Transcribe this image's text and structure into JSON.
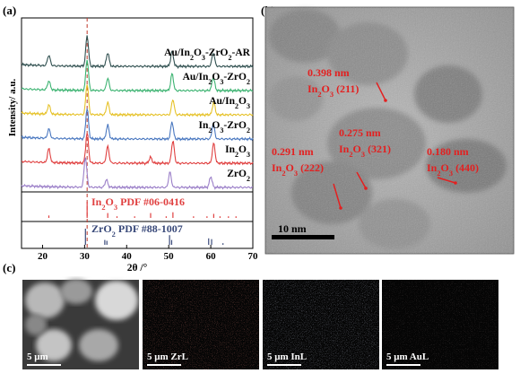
{
  "panels": {
    "a": "(a)",
    "b": "(b)",
    "c": "(c)"
  },
  "chart_data": {
    "type": "line",
    "xlabel": "2θ /°",
    "ylabel": "Intensity/ a.u.",
    "xlim": [
      15,
      70
    ],
    "xticks": [
      20,
      30,
      40,
      50,
      60,
      70
    ],
    "dashed_line_x": 30.6,
    "series": [
      {
        "name": "Au/In2O3-ZrO2-AR",
        "label_main": "Au/In",
        "sub1": "2",
        "mid1": "O",
        "sub2": "3",
        "tail": "-ZrO",
        "sub3": "2",
        "tail2": "-AR",
        "color": "#2f4f4f",
        "peaks": [
          [
            21.5,
            0.35
          ],
          [
            30.6,
            1.0
          ],
          [
            35.5,
            0.45
          ],
          [
            50.8,
            0.5
          ],
          [
            60.6,
            0.45
          ]
        ]
      },
      {
        "name": "Au/In2O3-ZrO2",
        "label_main": "Au/In",
        "sub1": "2",
        "mid1": "O",
        "sub2": "3",
        "tail": "-ZrO",
        "sub3": "2",
        "tail2": "",
        "color": "#3cb371",
        "peaks": [
          [
            21.5,
            0.3
          ],
          [
            30.6,
            1.0
          ],
          [
            35.5,
            0.4
          ],
          [
            50.8,
            0.55
          ],
          [
            60.6,
            0.45
          ]
        ]
      },
      {
        "name": "Au/In2O3",
        "label_main": "Au/In",
        "sub1": "2",
        "mid1": "O",
        "sub2": "3",
        "tail": "",
        "sub3": "",
        "tail2": "",
        "color": "#e6c229",
        "peaks": [
          [
            21.5,
            0.3
          ],
          [
            30.6,
            1.0
          ],
          [
            35.5,
            0.4
          ],
          [
            51.0,
            0.5
          ],
          [
            60.7,
            0.4
          ]
        ]
      },
      {
        "name": "In2O3-ZrO2",
        "label_main": "In",
        "sub1": "2",
        "mid1": "O",
        "sub2": "3",
        "tail": "-ZrO",
        "sub3": "2",
        "tail2": "",
        "color": "#4a78c0",
        "peaks": [
          [
            21.5,
            0.3
          ],
          [
            30.6,
            1.0
          ],
          [
            35.5,
            0.45
          ],
          [
            50.8,
            0.55
          ],
          [
            60.6,
            0.5
          ]
        ]
      },
      {
        "name": "In2O3",
        "label_main": "In",
        "sub1": "2",
        "mid1": "O",
        "sub2": "3",
        "tail": "",
        "sub3": "",
        "tail2": "",
        "color": "#e04040",
        "peaks": [
          [
            21.5,
            0.45
          ],
          [
            30.6,
            1.0
          ],
          [
            35.5,
            0.55
          ],
          [
            45.7,
            0.2
          ],
          [
            51.0,
            0.75
          ],
          [
            60.7,
            0.65
          ]
        ]
      },
      {
        "name": "ZrO2",
        "label_main": "ZrO",
        "sub1": "2",
        "mid1": "",
        "sub2": "",
        "tail": "",
        "sub3": "",
        "tail2": "",
        "color": "#9b7fc8",
        "peaks": [
          [
            30.2,
            1.0
          ],
          [
            35.2,
            0.25
          ],
          [
            50.3,
            0.5
          ],
          [
            60.0,
            0.35
          ]
        ]
      }
    ],
    "references": [
      {
        "name": "In2O3 PDF #06-0416",
        "pre": "In",
        "s1": "2",
        "mid": "O",
        "s2": "3",
        "post": "  PDF #06-0416",
        "color": "#e04040",
        "lines": [
          [
            21.5,
            0.15
          ],
          [
            30.6,
            1.0
          ],
          [
            35.5,
            0.3
          ],
          [
            37.7,
            0.1
          ],
          [
            41.9,
            0.1
          ],
          [
            45.7,
            0.3
          ],
          [
            49.4,
            0.1
          ],
          [
            51.0,
            0.35
          ],
          [
            55.9,
            0.1
          ],
          [
            59.1,
            0.1
          ],
          [
            60.7,
            0.25
          ],
          [
            62.2,
            0.1
          ],
          [
            64.2,
            0.1
          ],
          [
            66.0,
            0.1
          ]
        ]
      },
      {
        "name": "ZrO2 PDF #88-1007",
        "pre": "ZrO",
        "s1": "2",
        "mid": "",
        "s2": "",
        "post": "  PDF #88-1007",
        "color": "#3a4a7a",
        "lines": [
          [
            30.2,
            1.0
          ],
          [
            34.8,
            0.3
          ],
          [
            35.3,
            0.25
          ],
          [
            50.2,
            0.6
          ],
          [
            50.7,
            0.3
          ],
          [
            59.5,
            0.4
          ],
          [
            60.2,
            0.35
          ],
          [
            62.9,
            0.1
          ]
        ]
      }
    ]
  },
  "tem": {
    "annotations": [
      {
        "d": "0.398 nm",
        "pre": "In",
        "s1": "2",
        "mid": "O",
        "s2": "3",
        "post": " (211)"
      },
      {
        "d": "0.275 nm",
        "pre": "In",
        "s1": "2",
        "mid": "O",
        "s2": "3",
        "post": " (321)"
      },
      {
        "d": "0.291 nm",
        "pre": "In",
        "s1": "2",
        "mid": "O",
        "s2": "3",
        "post": " (222)"
      },
      {
        "d": "0.180 nm",
        "pre": "In",
        "s1": "2",
        "mid": "O",
        "s2": "3",
        "post": " (440)"
      }
    ],
    "scale_bar": "10 nm"
  },
  "eds": {
    "tiles": [
      {
        "scale": "5 μm",
        "element": "",
        "tint": "#9a9a9a"
      },
      {
        "scale": "5 μm",
        "element": "ZrL",
        "tint": "#c0392b"
      },
      {
        "scale": "5 μm",
        "element": "InL",
        "tint": "#7f8fa8"
      },
      {
        "scale": "5 μm",
        "element": "AuL",
        "tint": "#8a6a6a"
      }
    ]
  }
}
